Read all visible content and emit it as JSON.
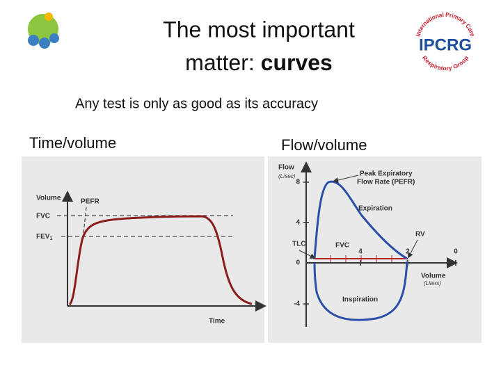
{
  "header": {
    "title_line1": "The most important",
    "title_line2": "matter: ",
    "title_bold": "curves",
    "subtitle": "Any test is only as good as its accuracy",
    "logo_text": "IPCRG",
    "logo_ring_top": "International Primary Care",
    "logo_ring_bottom": "Respiratory Group"
  },
  "left_panel": {
    "label": "Time/volume",
    "y_axis": "Volume",
    "pefr": "PEFR",
    "fvc": "FVC",
    "fev": "FEV",
    "fev_sub": "1",
    "x_axis": "Time"
  },
  "right_panel": {
    "label": "Flow/volume",
    "y_axis": "Flow",
    "y_unit": "(L/sec)",
    "y_ticks": [
      "8",
      "4",
      "0",
      "-4"
    ],
    "peak_line1": "Peak Expiratory",
    "peak_line2": "Flow Rate (PEFR)",
    "expiration": "Expiration",
    "rv": "RV",
    "tlc": "TLC",
    "fvc": "FVC",
    "x_ticks": [
      "4",
      "2",
      "0"
    ],
    "x_axis": "Volume",
    "x_unit": "(Liters)",
    "inspiration": "Inspiration"
  }
}
